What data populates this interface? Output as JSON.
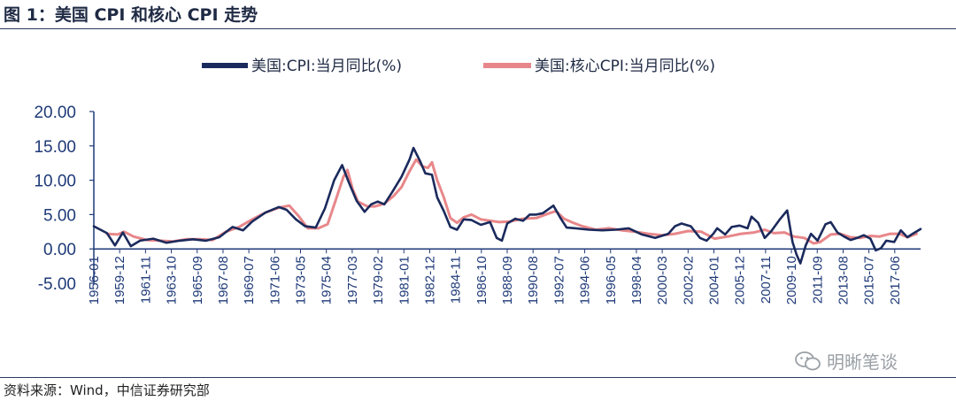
{
  "figure": {
    "title": "图 1：美国 CPI 和核心 CPI 走势",
    "source": "资料来源：Wind，中信证券研究部",
    "watermark": "明晰笔谈"
  },
  "chart_data": {
    "type": "line",
    "ylim": [
      -5,
      20
    ],
    "yticks": [
      "20.00",
      "15.00",
      "10.00",
      "5.00",
      "0.00",
      "-5.00"
    ],
    "ytick_values": [
      20,
      15,
      10,
      5,
      0,
      -5
    ],
    "xticks": [
      "1956-01",
      "1959-12",
      "1961-11",
      "1963-10",
      "1965-09",
      "1967-08",
      "1969-07",
      "1971-06",
      "1973-05",
      "1975-04",
      "1977-03",
      "1979-02",
      "1981-01",
      "1982-12",
      "1984-11",
      "1986-10",
      "1988-09",
      "1990-08",
      "1992-07",
      "1994-06",
      "1996-05",
      "1998-04",
      "2000-03",
      "2002-02",
      "2004-01",
      "2005-12",
      "2007-11",
      "2009-10",
      "2011-09",
      "2013-08",
      "2015-07",
      "2017-06"
    ],
    "x_range": [
      1956.0,
      2018.6
    ],
    "legend_position": "top-center",
    "series": [
      {
        "name": "美国:CPI:当月同比(%)",
        "color": "#1b2a5c",
        "points": [
          [
            1956.0,
            3.3
          ],
          [
            1957.0,
            2.3
          ],
          [
            1957.6,
            0.5
          ],
          [
            1958.2,
            2.4
          ],
          [
            1958.8,
            0.4
          ],
          [
            1959.5,
            1.2
          ],
          [
            1960.5,
            1.5
          ],
          [
            1961.5,
            0.9
          ],
          [
            1962.5,
            1.2
          ],
          [
            1963.5,
            1.4
          ],
          [
            1964.5,
            1.2
          ],
          [
            1965.5,
            1.7
          ],
          [
            1966.5,
            3.2
          ],
          [
            1967.3,
            2.7
          ],
          [
            1968.0,
            4.0
          ],
          [
            1969.0,
            5.3
          ],
          [
            1970.0,
            6.1
          ],
          [
            1970.6,
            5.7
          ],
          [
            1971.3,
            4.3
          ],
          [
            1972.0,
            3.3
          ],
          [
            1972.8,
            3.1
          ],
          [
            1973.5,
            5.9
          ],
          [
            1974.2,
            10.0
          ],
          [
            1974.8,
            12.2
          ],
          [
            1975.3,
            9.7
          ],
          [
            1975.9,
            7.0
          ],
          [
            1976.5,
            5.4
          ],
          [
            1977.0,
            6.5
          ],
          [
            1977.5,
            6.9
          ],
          [
            1978.0,
            6.5
          ],
          [
            1978.6,
            8.3
          ],
          [
            1979.3,
            10.5
          ],
          [
            1979.9,
            13.0
          ],
          [
            1980.2,
            14.7
          ],
          [
            1980.7,
            12.8
          ],
          [
            1981.1,
            11.0
          ],
          [
            1981.6,
            10.8
          ],
          [
            1982.0,
            7.5
          ],
          [
            1982.5,
            5.5
          ],
          [
            1983.0,
            3.2
          ],
          [
            1983.5,
            2.8
          ],
          [
            1984.0,
            4.3
          ],
          [
            1984.6,
            4.2
          ],
          [
            1985.3,
            3.5
          ],
          [
            1986.0,
            3.9
          ],
          [
            1986.5,
            1.6
          ],
          [
            1986.9,
            1.2
          ],
          [
            1987.3,
            3.7
          ],
          [
            1987.9,
            4.4
          ],
          [
            1988.5,
            4.1
          ],
          [
            1989.0,
            5.0
          ],
          [
            1989.5,
            5.0
          ],
          [
            1990.0,
            5.2
          ],
          [
            1990.8,
            6.3
          ],
          [
            1991.3,
            4.6
          ],
          [
            1991.8,
            3.1
          ],
          [
            1992.5,
            3.0
          ],
          [
            1993.5,
            2.8
          ],
          [
            1994.5,
            2.7
          ],
          [
            1995.5,
            2.8
          ],
          [
            1996.5,
            3.0
          ],
          [
            1997.5,
            2.1
          ],
          [
            1998.5,
            1.6
          ],
          [
            1999.5,
            2.2
          ],
          [
            2000.0,
            3.3
          ],
          [
            2000.5,
            3.7
          ],
          [
            2001.2,
            3.3
          ],
          [
            2001.9,
            1.6
          ],
          [
            2002.4,
            1.2
          ],
          [
            2002.9,
            2.2
          ],
          [
            2003.2,
            3.0
          ],
          [
            2003.8,
            2.1
          ],
          [
            2004.3,
            3.2
          ],
          [
            2004.9,
            3.4
          ],
          [
            2005.5,
            3.0
          ],
          [
            2005.8,
            4.7
          ],
          [
            2006.3,
            3.8
          ],
          [
            2006.8,
            1.6
          ],
          [
            2007.3,
            2.6
          ],
          [
            2007.9,
            4.2
          ],
          [
            2008.5,
            5.6
          ],
          [
            2008.9,
            1.0
          ],
          [
            2009.2,
            -0.8
          ],
          [
            2009.5,
            -2.1
          ],
          [
            2009.9,
            0.5
          ],
          [
            2010.3,
            2.2
          ],
          [
            2010.8,
            1.2
          ],
          [
            2011.4,
            3.6
          ],
          [
            2011.8,
            3.9
          ],
          [
            2012.3,
            2.4
          ],
          [
            2012.8,
            1.8
          ],
          [
            2013.3,
            1.3
          ],
          [
            2013.8,
            1.6
          ],
          [
            2014.3,
            2.0
          ],
          [
            2014.8,
            1.5
          ],
          [
            2015.2,
            -0.2
          ],
          [
            2015.6,
            0.1
          ],
          [
            2016.0,
            1.2
          ],
          [
            2016.6,
            1.0
          ],
          [
            2017.1,
            2.7
          ],
          [
            2017.6,
            1.7
          ],
          [
            2018.0,
            2.2
          ],
          [
            2018.6,
            2.9
          ]
        ]
      },
      {
        "name": "美国:核心CPI:当月同比(%)",
        "color": "#e8878a",
        "points": [
          [
            1957.0,
            2.2
          ],
          [
            1957.8,
            2.1
          ],
          [
            1958.3,
            2.5
          ],
          [
            1959.0,
            1.8
          ],
          [
            1960.0,
            1.3
          ],
          [
            1961.0,
            1.2
          ],
          [
            1962.0,
            1.1
          ],
          [
            1963.0,
            1.4
          ],
          [
            1964.0,
            1.4
          ],
          [
            1965.0,
            1.3
          ],
          [
            1966.0,
            2.5
          ],
          [
            1967.0,
            3.2
          ],
          [
            1968.0,
            4.3
          ],
          [
            1969.0,
            5.3
          ],
          [
            1970.0,
            6.0
          ],
          [
            1970.8,
            6.3
          ],
          [
            1971.5,
            4.8
          ],
          [
            1972.2,
            3.0
          ],
          [
            1973.0,
            3.0
          ],
          [
            1973.7,
            3.6
          ],
          [
            1974.3,
            7.0
          ],
          [
            1974.9,
            10.5
          ],
          [
            1975.2,
            11.5
          ],
          [
            1975.6,
            8.7
          ],
          [
            1976.0,
            6.9
          ],
          [
            1976.7,
            6.2
          ],
          [
            1977.3,
            6.2
          ],
          [
            1978.0,
            6.6
          ],
          [
            1978.7,
            7.7
          ],
          [
            1979.3,
            9.0
          ],
          [
            1979.9,
            11.3
          ],
          [
            1980.4,
            13.0
          ],
          [
            1980.9,
            12.0
          ],
          [
            1981.3,
            11.8
          ],
          [
            1981.6,
            12.6
          ],
          [
            1982.0,
            10.0
          ],
          [
            1982.5,
            7.5
          ],
          [
            1983.0,
            4.5
          ],
          [
            1983.5,
            3.8
          ],
          [
            1984.0,
            4.6
          ],
          [
            1984.6,
            5.0
          ],
          [
            1985.3,
            4.3
          ],
          [
            1986.0,
            4.1
          ],
          [
            1986.7,
            3.9
          ],
          [
            1987.5,
            4.0
          ],
          [
            1988.5,
            4.4
          ],
          [
            1989.5,
            4.5
          ],
          [
            1990.5,
            5.2
          ],
          [
            1991.0,
            5.5
          ],
          [
            1991.6,
            4.4
          ],
          [
            1992.3,
            3.8
          ],
          [
            1993.0,
            3.3
          ],
          [
            1994.0,
            2.8
          ],
          [
            1995.0,
            3.0
          ],
          [
            1996.0,
            2.7
          ],
          [
            1997.0,
            2.5
          ],
          [
            1998.0,
            2.2
          ],
          [
            1999.0,
            2.0
          ],
          [
            2000.0,
            2.2
          ],
          [
            2001.0,
            2.6
          ],
          [
            2002.0,
            2.5
          ],
          [
            2003.0,
            1.5
          ],
          [
            2004.0,
            1.8
          ],
          [
            2005.0,
            2.2
          ],
          [
            2006.0,
            2.4
          ],
          [
            2006.8,
            2.8
          ],
          [
            2007.5,
            2.3
          ],
          [
            2008.3,
            2.4
          ],
          [
            2009.0,
            1.8
          ],
          [
            2009.8,
            1.6
          ],
          [
            2010.5,
            0.8
          ],
          [
            2011.0,
            1.0
          ],
          [
            2011.8,
            2.1
          ],
          [
            2012.5,
            2.2
          ],
          [
            2013.3,
            1.7
          ],
          [
            2014.0,
            1.6
          ],
          [
            2014.8,
            1.9
          ],
          [
            2015.5,
            1.8
          ],
          [
            2016.3,
            2.2
          ],
          [
            2017.0,
            2.2
          ],
          [
            2017.6,
            1.7
          ],
          [
            2018.3,
            2.2
          ]
        ]
      }
    ]
  }
}
